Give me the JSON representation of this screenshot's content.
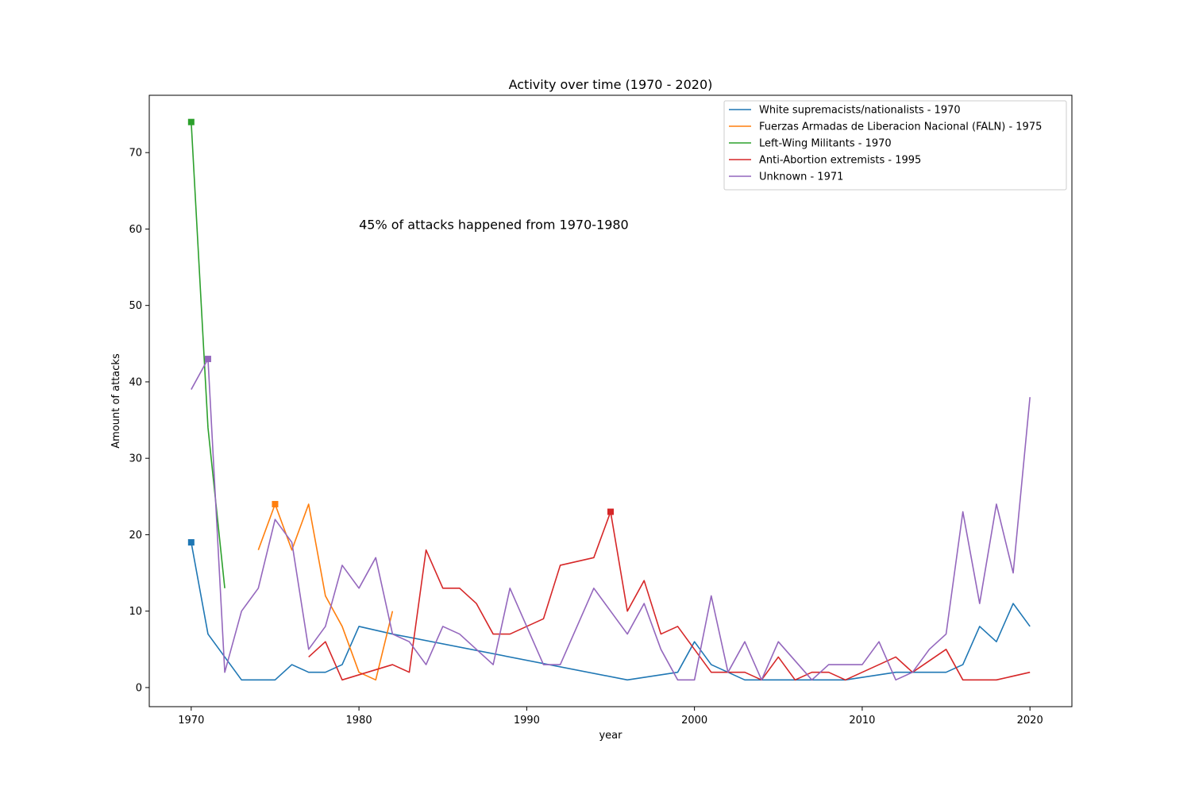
{
  "chart_data": {
    "type": "line",
    "title": "Activity over time (1970 - 2020)",
    "xlabel": "year",
    "ylabel": "Amount of attacks",
    "xlim": [
      1967.5,
      2022.5
    ],
    "ylim": [
      -2.5,
      77.5
    ],
    "xticks": [
      1970,
      1980,
      1990,
      2000,
      2010,
      2020
    ],
    "yticks": [
      0,
      10,
      20,
      30,
      40,
      50,
      60,
      70
    ],
    "grid": false,
    "legend_position": "top-right",
    "annotation": {
      "text": "45% of attacks happened from 1970-1980",
      "x": 1980,
      "y": 60
    },
    "series": [
      {
        "name": "White supremacists/nationalists - 1970",
        "color": "#1f77b4",
        "x": [
          1970,
          1971,
          1972,
          1973,
          1974,
          1975,
          1976,
          1977,
          1978,
          1979,
          1980,
          1982,
          1996,
          1999,
          2000,
          2001,
          2002,
          2003,
          2004,
          2005,
          2006,
          2007,
          2008,
          2009,
          2012,
          2013,
          2014,
          2015,
          2016,
          2017,
          2018,
          2019,
          2020
        ],
        "y": [
          19,
          7,
          4,
          1,
          1,
          1,
          3,
          2,
          2,
          3,
          8,
          7,
          1,
          2,
          6,
          3,
          2,
          1,
          1,
          1,
          1,
          1,
          1,
          1,
          2,
          2,
          2,
          2,
          3,
          8,
          6,
          11,
          8
        ],
        "marker": {
          "x": 1970,
          "y": 19
        }
      },
      {
        "name": "Fuerzas Armadas de Liberacion Nacional (FALN) - 1975",
        "color": "#ff7f0e",
        "x": [
          1974,
          1975,
          1976,
          1977,
          1978,
          1979,
          1980,
          1981,
          1982
        ],
        "y": [
          18,
          24,
          18,
          24,
          12,
          8,
          2,
          1,
          10
        ],
        "marker": {
          "x": 1975,
          "y": 24
        }
      },
      {
        "name": "Left-Wing Militants - 1970",
        "color": "#2ca02c",
        "x": [
          1970,
          1971,
          1972
        ],
        "y": [
          74,
          34,
          13
        ],
        "marker": {
          "x": 1970,
          "y": 74
        }
      },
      {
        "name": "Anti-Abortion extremists - 1995",
        "color": "#d62728",
        "x": [
          1977,
          1978,
          1979,
          1982,
          1983,
          1984,
          1985,
          1986,
          1987,
          1988,
          1989,
          1991,
          1992,
          1994,
          1995,
          1996,
          1997,
          1998,
          1999,
          2000,
          2001,
          2002,
          2003,
          2004,
          2005,
          2006,
          2007,
          2008,
          2009,
          2012,
          2013,
          2015,
          2016,
          2018,
          2020
        ],
        "y": [
          4,
          6,
          1,
          3,
          2,
          18,
          13,
          13,
          11,
          7,
          7,
          9,
          16,
          17,
          23,
          10,
          14,
          7,
          8,
          5,
          2,
          2,
          2,
          1,
          4,
          1,
          2,
          2,
          1,
          4,
          2,
          5,
          1,
          1,
          2
        ],
        "marker": {
          "x": 1995,
          "y": 23
        }
      },
      {
        "name": "Unknown - 1971",
        "color": "#9467bd",
        "x": [
          1970,
          1971,
          1972,
          1973,
          1974,
          1975,
          1976,
          1977,
          1978,
          1979,
          1980,
          1981,
          1982,
          1983,
          1984,
          1985,
          1986,
          1987,
          1988,
          1989,
          1991,
          1992,
          1994,
          1996,
          1997,
          1998,
          1999,
          2000,
          2001,
          2002,
          2003,
          2004,
          2005,
          2007,
          2008,
          2010,
          2011,
          2012,
          2013,
          2014,
          2015,
          2016,
          2017,
          2018,
          2019,
          2020
        ],
        "y": [
          39,
          43,
          2,
          10,
          13,
          22,
          19,
          5,
          8,
          16,
          13,
          17,
          7,
          6,
          3,
          8,
          7,
          5,
          3,
          13,
          3,
          3,
          13,
          7,
          11,
          5,
          1,
          1,
          12,
          2,
          6,
          1,
          6,
          1,
          3,
          3,
          6,
          1,
          2,
          5,
          7,
          23,
          11,
          24,
          15,
          38
        ],
        "marker": {
          "x": 1971,
          "y": 43
        }
      }
    ]
  }
}
